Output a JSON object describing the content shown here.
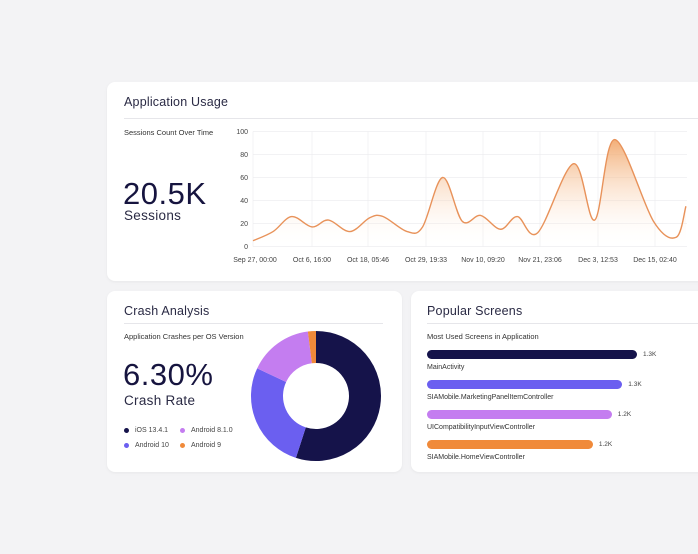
{
  "usage": {
    "title": "Application Usage",
    "subtitle": "Sessions Count Over Time",
    "value": "20.5K",
    "value_label": "Sessions"
  },
  "crash": {
    "title": "Crash Analysis",
    "subtitle": "Application Crashes per OS Version",
    "value": "6.30%",
    "value_label": "Crash Rate",
    "legend": [
      {
        "label": "iOS 13.4.1",
        "color": "#15134a"
      },
      {
        "label": "Android 8.1.0",
        "color": "#c47df0"
      },
      {
        "label": "Android 10",
        "color": "#6b5ff0"
      },
      {
        "label": "Android 9",
        "color": "#f08a3a"
      }
    ]
  },
  "screens": {
    "title": "Popular Screens",
    "subtitle": "Most Used Screens in Application",
    "items": [
      {
        "label": "MainActivity",
        "value": "1.3K",
        "fraction": 1.0,
        "color": "#15134a"
      },
      {
        "label": "SIAMobile.MarketingPanelItemController",
        "value": "1.3K",
        "fraction": 0.93,
        "color": "#6b5ff0"
      },
      {
        "label": "UICompatibilityInputViewController",
        "value": "1.2K",
        "fraction": 0.88,
        "color": "#c47df0"
      },
      {
        "label": "SIAMobile.HomeViewController",
        "value": "1.2K",
        "fraction": 0.79,
        "color": "#f08a3a"
      }
    ]
  },
  "chart_data": [
    {
      "type": "area",
      "title": "Sessions Count Over Time",
      "ylim": [
        0,
        100
      ],
      "grid": true,
      "color": "#e8925a",
      "yticks": [
        "0",
        "20",
        "40",
        "60",
        "80",
        "100"
      ],
      "xticks": [
        {
          "label": "Sep 27, 00:00",
          "date": "2020-09-27T00:00"
        },
        {
          "label": "Oct 6, 16:00",
          "date": "2020-10-06T16:00"
        },
        {
          "label": "Oct 18, 05:46",
          "date": "2020-10-18T05:46"
        },
        {
          "label": "Oct 29, 19:33",
          "date": "2020-10-29T19:33"
        },
        {
          "label": "Nov 10, 09:20",
          "date": "2020-11-10T09:20"
        },
        {
          "label": "Nov 21, 23:06",
          "date": "2020-11-21T23:06"
        },
        {
          "label": "Dec 3, 12:53",
          "date": "2020-12-03T12:53"
        },
        {
          "label": "Dec 15, 02:40",
          "date": "2020-12-15T02:40"
        }
      ],
      "points": [
        [
          "2020-09-27T00:00",
          5
        ],
        [
          "2020-09-30T07:00",
          13
        ],
        [
          "2020-10-03T08:00",
          26
        ],
        [
          "2020-10-06T16:00",
          17
        ],
        [
          "2020-10-10T02:00",
          23
        ],
        [
          "2020-10-14T12:00",
          13
        ],
        [
          "2020-10-18T14:00",
          25
        ],
        [
          "2020-10-21T07:00",
          26
        ],
        [
          "2020-10-26T01:00",
          13
        ],
        [
          "2020-10-29T03:00",
          17
        ],
        [
          "2020-11-02T05:00",
          60
        ],
        [
          "2020-11-06T04:00",
          22
        ],
        [
          "2020-11-09T22:00",
          27
        ],
        [
          "2020-11-13T23:00",
          15
        ],
        [
          "2020-11-17T09:00",
          26
        ],
        [
          "2020-11-21T12:00",
          12
        ],
        [
          "2020-11-28T16:00",
          72
        ],
        [
          "2020-12-02T21:00",
          23
        ],
        [
          "2020-12-06T22:00",
          93
        ],
        [
          "2020-12-14T19:00",
          22
        ],
        [
          "2020-12-19T12:00",
          8
        ],
        [
          "2020-12-21T12:00",
          35
        ]
      ]
    },
    {
      "type": "pie",
      "title": "Application Crashes per OS Version",
      "donut": true,
      "slices": [
        {
          "label": "iOS 13.4.1",
          "value": 55,
          "color": "#15134a"
        },
        {
          "label": "Android 10",
          "value": 27,
          "color": "#6b5ff0"
        },
        {
          "label": "Android 8.1.0",
          "value": 16,
          "color": "#c47df0"
        },
        {
          "label": "Android 9",
          "value": 2,
          "color": "#f08a3a"
        }
      ]
    }
  ]
}
